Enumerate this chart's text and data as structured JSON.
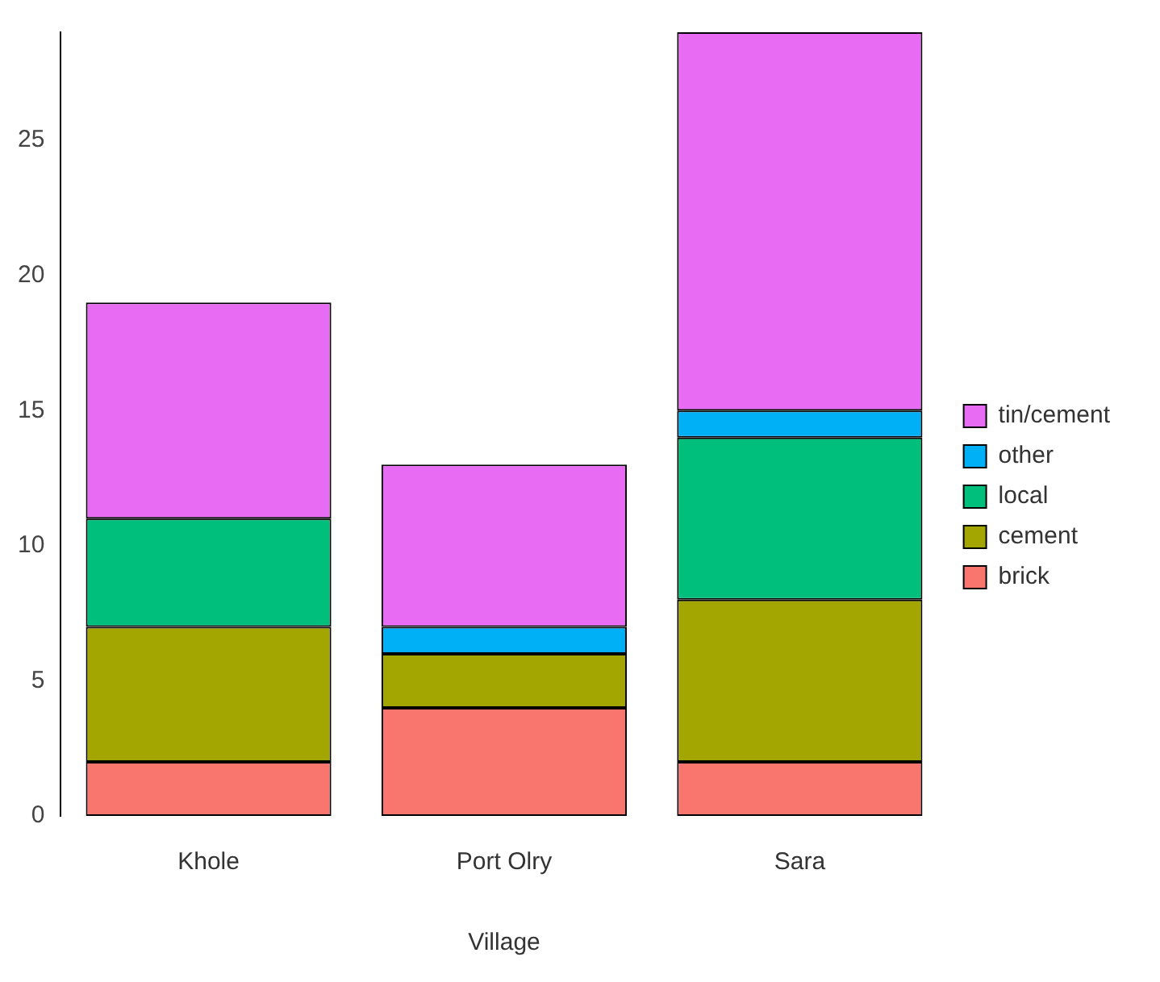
{
  "chart_data": {
    "type": "bar",
    "stacked": true,
    "xlabel": "Village",
    "categories": [
      "Khole",
      "Port Olry",
      "Sara"
    ],
    "series": [
      {
        "name": "brick",
        "color": "#f8766d",
        "values": [
          2,
          4,
          2
        ]
      },
      {
        "name": "cement",
        "color": "#a3a500",
        "values": [
          5,
          2,
          6
        ]
      },
      {
        "name": "local",
        "color": "#00bf7d",
        "values": [
          4,
          0,
          6
        ]
      },
      {
        "name": "other",
        "color": "#00b0f6",
        "values": [
          0,
          1,
          1
        ]
      },
      {
        "name": "tin/cement",
        "color": "#e76bf3",
        "values": [
          8,
          6,
          14
        ]
      }
    ],
    "ylim": [
      0,
      29
    ],
    "yticks": [
      0,
      5,
      10,
      15,
      20,
      25
    ],
    "grid": false,
    "legend": "right"
  }
}
